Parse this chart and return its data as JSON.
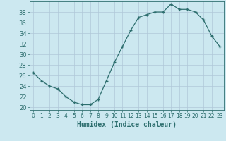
{
  "x": [
    0,
    1,
    2,
    3,
    4,
    5,
    6,
    7,
    8,
    9,
    10,
    11,
    12,
    13,
    14,
    15,
    16,
    17,
    18,
    19,
    20,
    21,
    22,
    23
  ],
  "y": [
    26.5,
    25,
    24,
    23.5,
    22,
    21,
    20.5,
    20.5,
    21.5,
    25,
    28.5,
    31.5,
    34.5,
    37,
    37.5,
    38,
    38,
    39.5,
    38.5,
    38.5,
    38,
    36.5,
    33.5,
    31.5
  ],
  "line_color": "#2d6e6e",
  "marker": "+",
  "bg_color": "#cce8f0",
  "grid_color": "#b0c8d8",
  "xlabel": "Humidex (Indice chaleur)",
  "xlim": [
    -0.5,
    23.5
  ],
  "ylim": [
    19.5,
    40.0
  ],
  "yticks": [
    20,
    22,
    24,
    26,
    28,
    30,
    32,
    34,
    36,
    38
  ],
  "xticks": [
    0,
    1,
    2,
    3,
    4,
    5,
    6,
    7,
    8,
    9,
    10,
    11,
    12,
    13,
    14,
    15,
    16,
    17,
    18,
    19,
    20,
    21,
    22,
    23
  ]
}
